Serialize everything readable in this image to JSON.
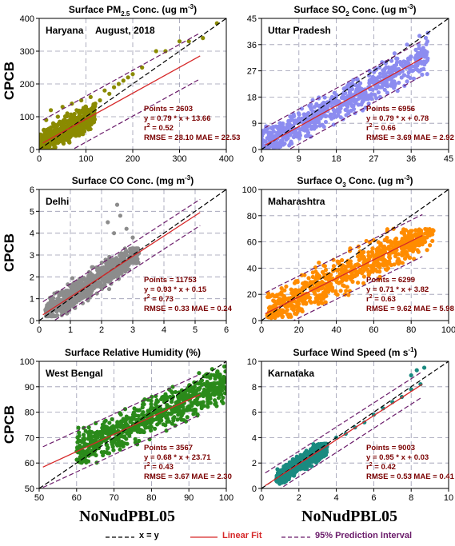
{
  "figure": {
    "y_axis_label": "CPCB",
    "x_axis_label": "NoNudPBL05"
  },
  "legend": {
    "xy_label": "x = y",
    "fit_label": "Linear Fit",
    "pi_label": "95% Prediction Interval"
  },
  "colors": {
    "xy": "#000000",
    "fit": "#d62728",
    "pi": "#6a1b6a",
    "stats": "#7a0000"
  },
  "chart_data": [
    {
      "type": "scatter",
      "title": "Surface PM2.5 Conc. (ug m-3)",
      "title_main": "Surface PM",
      "title_sub": "2.5",
      "title_tail": " Conc. (ug m",
      "title_sup": "-3",
      "title_end": ")",
      "region": "Haryana",
      "date_note": "August, 2018",
      "color": "#8a8a00",
      "xlim": [
        0,
        400
      ],
      "ylim": [
        0,
        400
      ],
      "xticks": [
        0,
        100,
        200,
        300,
        400
      ],
      "yticks": [
        0,
        100,
        200,
        300,
        400
      ],
      "fit": {
        "slope": 0.79,
        "intercept": 13.66,
        "pi": 70
      },
      "stats": [
        "Points = 2603",
        "y = 0.79 * x + 13.66",
        "r2 = 0.52",
        "RMSE = 28.10 MAE = 22.53"
      ],
      "cluster": {
        "xmin": 0,
        "xmax": 120,
        "ymin": 0,
        "ymax": 180
      },
      "points": [
        [
          5,
          40
        ],
        [
          10,
          60
        ],
        [
          15,
          90
        ],
        [
          20,
          50
        ],
        [
          25,
          120
        ],
        [
          30,
          80
        ],
        [
          35,
          70
        ],
        [
          40,
          100
        ],
        [
          45,
          60
        ],
        [
          50,
          130
        ],
        [
          55,
          90
        ],
        [
          60,
          110
        ],
        [
          65,
          75
        ],
        [
          70,
          140
        ],
        [
          75,
          95
        ],
        [
          80,
          120
        ],
        [
          85,
          100
        ],
        [
          90,
          150
        ],
        [
          95,
          110
        ],
        [
          100,
          130
        ],
        [
          105,
          115
        ],
        [
          110,
          160
        ],
        [
          115,
          120
        ],
        [
          120,
          140
        ],
        [
          130,
          150
        ],
        [
          140,
          180
        ],
        [
          150,
          170
        ],
        [
          160,
          190
        ],
        [
          170,
          200
        ],
        [
          180,
          210
        ],
        [
          190,
          220
        ],
        [
          200,
          230
        ],
        [
          220,
          250
        ],
        [
          250,
          300
        ],
        [
          270,
          300
        ],
        [
          300,
          330
        ],
        [
          320,
          330
        ],
        [
          350,
          340
        ],
        [
          380,
          385
        ]
      ]
    },
    {
      "type": "scatter",
      "title": "Surface SO2 Conc. (ug m-3)",
      "title_main": "Surface SO",
      "title_sub": "2",
      "title_tail": " Conc. (ug m",
      "title_sup": "-3",
      "title_end": ")",
      "region": "Uttar Pradesh",
      "date_note": "",
      "color": "#8c8cf0",
      "xlim": [
        0,
        45
      ],
      "ylim": [
        0,
        45
      ],
      "xticks": [
        0,
        9,
        18,
        27,
        36,
        45
      ],
      "yticks": [
        0,
        9,
        18,
        27,
        36,
        45
      ],
      "fit": {
        "slope": 0.79,
        "intercept": 0.78,
        "pi": 6
      },
      "stats": [
        "Points = 6956",
        "y = 0.79 * x + 0.78",
        "r2 = 0.66",
        "RMSE = 3.69 MAE = 2.92"
      ],
      "cluster": {
        "xmin": 0,
        "xmax": 40,
        "ymin": 0,
        "ymax": 40
      },
      "band": true,
      "points": [
        [
          2,
          3
        ],
        [
          5,
          6
        ],
        [
          8,
          9
        ],
        [
          11,
          12
        ],
        [
          14,
          15
        ],
        [
          17,
          18
        ],
        [
          20,
          21
        ],
        [
          23,
          24
        ],
        [
          26,
          27
        ],
        [
          29,
          30
        ],
        [
          32,
          33
        ],
        [
          35,
          36
        ],
        [
          38,
          39
        ],
        [
          40,
          40
        ]
      ]
    },
    {
      "type": "scatter",
      "title": "Surface CO Conc. (mg m-3)",
      "title_main": "Surface CO Conc. (mg m",
      "title_sub": "",
      "title_tail": "",
      "title_sup": "-3",
      "title_end": ")",
      "region": "Delhi",
      "date_note": "",
      "color": "#8c8c8c",
      "xlim": [
        0,
        6
      ],
      "ylim": [
        0,
        6
      ],
      "xticks": [
        0,
        1,
        2,
        3,
        4,
        5,
        6
      ],
      "yticks": [
        0,
        1,
        2,
        3,
        4,
        5,
        6
      ],
      "fit": {
        "slope": 0.93,
        "intercept": 0.15,
        "pi": 0.6
      },
      "stats": [
        "Points = 11753",
        "y = 0.93 * x + 0.15",
        "r2 = 0.73",
        "RMSE = 0.33 MAE = 0.24"
      ],
      "cluster": {
        "xmin": 0.2,
        "xmax": 3.2,
        "ymin": 0.2,
        "ymax": 3.3
      },
      "points": [
        [
          0.3,
          0.5
        ],
        [
          0.5,
          0.8
        ],
        [
          0.8,
          1.0
        ],
        [
          1.0,
          1.2
        ],
        [
          1.5,
          1.6
        ],
        [
          2.0,
          2.2
        ],
        [
          2.2,
          4.5
        ],
        [
          2.5,
          5.3
        ],
        [
          2.6,
          4.8
        ],
        [
          2.8,
          4.2
        ],
        [
          3.0,
          3.8
        ],
        [
          2.4,
          4.0
        ]
      ]
    },
    {
      "type": "scatter",
      "title": "Surface O3 Conc. (ug m-3)",
      "title_main": "Surface O",
      "title_sub": "3",
      "title_tail": " Conc. (ug m",
      "title_sup": "-3",
      "title_end": ")",
      "region": "Maharashtra",
      "date_note": "",
      "color": "#ff8c00",
      "xlim": [
        0,
        100
      ],
      "ylim": [
        0,
        100
      ],
      "xticks": [
        0,
        20,
        40,
        60,
        80,
        100
      ],
      "yticks": [
        0,
        20,
        40,
        60,
        80,
        100
      ],
      "fit": {
        "slope": 0.71,
        "intercept": 3.82,
        "pi": 16
      },
      "stats": [
        "Points = 6299",
        "y = 0.71 * x + 3.82",
        "r2 = 0.63",
        "RMSE = 9.62 MAE = 5.98"
      ],
      "cluster": {
        "xmin": 3,
        "xmax": 92,
        "ymin": 2,
        "ymax": 70
      },
      "band": true,
      "points": [
        [
          5,
          5
        ],
        [
          15,
          12
        ],
        [
          25,
          20
        ],
        [
          35,
          28
        ],
        [
          45,
          35
        ],
        [
          55,
          42
        ],
        [
          65,
          50
        ],
        [
          75,
          55
        ],
        [
          85,
          62
        ],
        [
          90,
          65
        ]
      ]
    },
    {
      "type": "scatter",
      "title": "Surface Relative Humidity (%)",
      "title_main": "Surface Relative Humidity (%)",
      "title_sub": "",
      "title_tail": "",
      "title_sup": "",
      "title_end": "",
      "region": "West Bengal",
      "date_note": "",
      "color": "#2a8a1a",
      "xlim": [
        50,
        100
      ],
      "ylim": [
        50,
        100
      ],
      "xticks": [
        50,
        60,
        70,
        80,
        90,
        100
      ],
      "yticks": [
        50,
        60,
        70,
        80,
        90,
        100
      ],
      "fit": {
        "slope": 0.68,
        "intercept": 23.71,
        "pi": 8
      },
      "stats": [
        "Points = 3567",
        "y = 0.68 * x + 23.71",
        "r2 = 0.43",
        "RMSE = 3.67 MAE = 2.30"
      ],
      "cluster": {
        "xmin": 60,
        "xmax": 100,
        "ymin": 60,
        "ymax": 100
      },
      "band": true,
      "points": [
        [
          62,
          62
        ],
        [
          65,
          68
        ],
        [
          70,
          72
        ],
        [
          75,
          78
        ],
        [
          80,
          82
        ],
        [
          85,
          86
        ],
        [
          90,
          90
        ],
        [
          95,
          94
        ],
        [
          100,
          98
        ]
      ]
    },
    {
      "type": "scatter",
      "title": "Surface Wind Speed (m s-1)",
      "title_main": "Surface Wind Speed (m s",
      "title_sub": "",
      "title_tail": "",
      "title_sup": "-1",
      "title_end": ")",
      "region": "Karnataka",
      "date_note": "",
      "color": "#1a8a80",
      "xlim": [
        0,
        10
      ],
      "ylim": [
        0,
        10
      ],
      "xticks": [
        0,
        2,
        4,
        6,
        8,
        10
      ],
      "yticks": [
        0,
        2,
        4,
        6,
        8,
        10
      ],
      "fit": {
        "slope": 0.95,
        "intercept": 0.03,
        "pi": 1.0
      },
      "stats": [
        "Points = 9003",
        "y = 0.95 * x + 0.03",
        "r2 = 0.42",
        "RMSE = 0.53 MAE = 0.41"
      ],
      "cluster": {
        "xmin": 0.8,
        "xmax": 3.5,
        "ymin": 0.2,
        "ymax": 3.5
      },
      "points": [
        [
          3.5,
          3.5
        ],
        [
          4,
          4
        ],
        [
          4.5,
          4.3
        ],
        [
          5,
          4.8
        ],
        [
          5.5,
          5.2
        ],
        [
          6,
          5.8
        ],
        [
          6.5,
          6.3
        ],
        [
          7,
          6.8
        ],
        [
          7.5,
          7.2
        ],
        [
          8,
          7.8
        ],
        [
          8.5,
          8.2
        ],
        [
          8.7,
          9.5
        ],
        [
          8.3,
          9.3
        ],
        [
          8,
          8.9
        ]
      ]
    }
  ]
}
